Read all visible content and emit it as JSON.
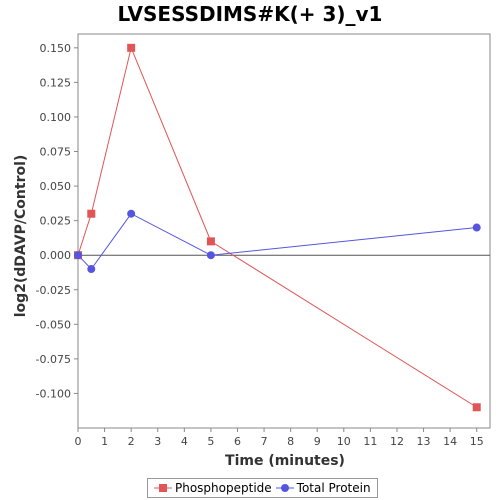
{
  "chart_data": {
    "type": "line",
    "title": "LVSESSDIMS#K(+ 3)_v1",
    "xlabel": "Time (minutes)",
    "ylabel": "log2(dDAVP/Control)",
    "xlim": [
      0,
      15.5
    ],
    "ylim": [
      -0.125,
      0.16
    ],
    "xticks": [
      0,
      1,
      2,
      3,
      4,
      5,
      6,
      7,
      8,
      9,
      10,
      11,
      12,
      13,
      14,
      15
    ],
    "yticks": [
      -0.1,
      -0.075,
      -0.05,
      -0.025,
      0.0,
      0.025,
      0.05,
      0.075,
      0.1,
      0.125,
      0.15
    ],
    "ytick_labels": [
      "-0.100",
      "-0.075",
      "-0.050",
      "-0.025",
      "0.000",
      "0.025",
      "0.050",
      "0.075",
      "0.100",
      "0.125",
      "0.150"
    ],
    "zero_line": true,
    "grid": false,
    "legend_position": "bottom",
    "series": [
      {
        "name": "Phosphopeptide",
        "color": "#e05555",
        "marker": "square",
        "x": [
          0,
          0.5,
          2,
          5,
          15
        ],
        "y": [
          0.0,
          0.03,
          0.15,
          0.01,
          -0.11
        ]
      },
      {
        "name": "Total Protein",
        "color": "#5555e0",
        "marker": "circle",
        "x": [
          0,
          0.5,
          2,
          5,
          15
        ],
        "y": [
          0.0,
          -0.01,
          0.03,
          0.0,
          0.02
        ]
      }
    ]
  }
}
